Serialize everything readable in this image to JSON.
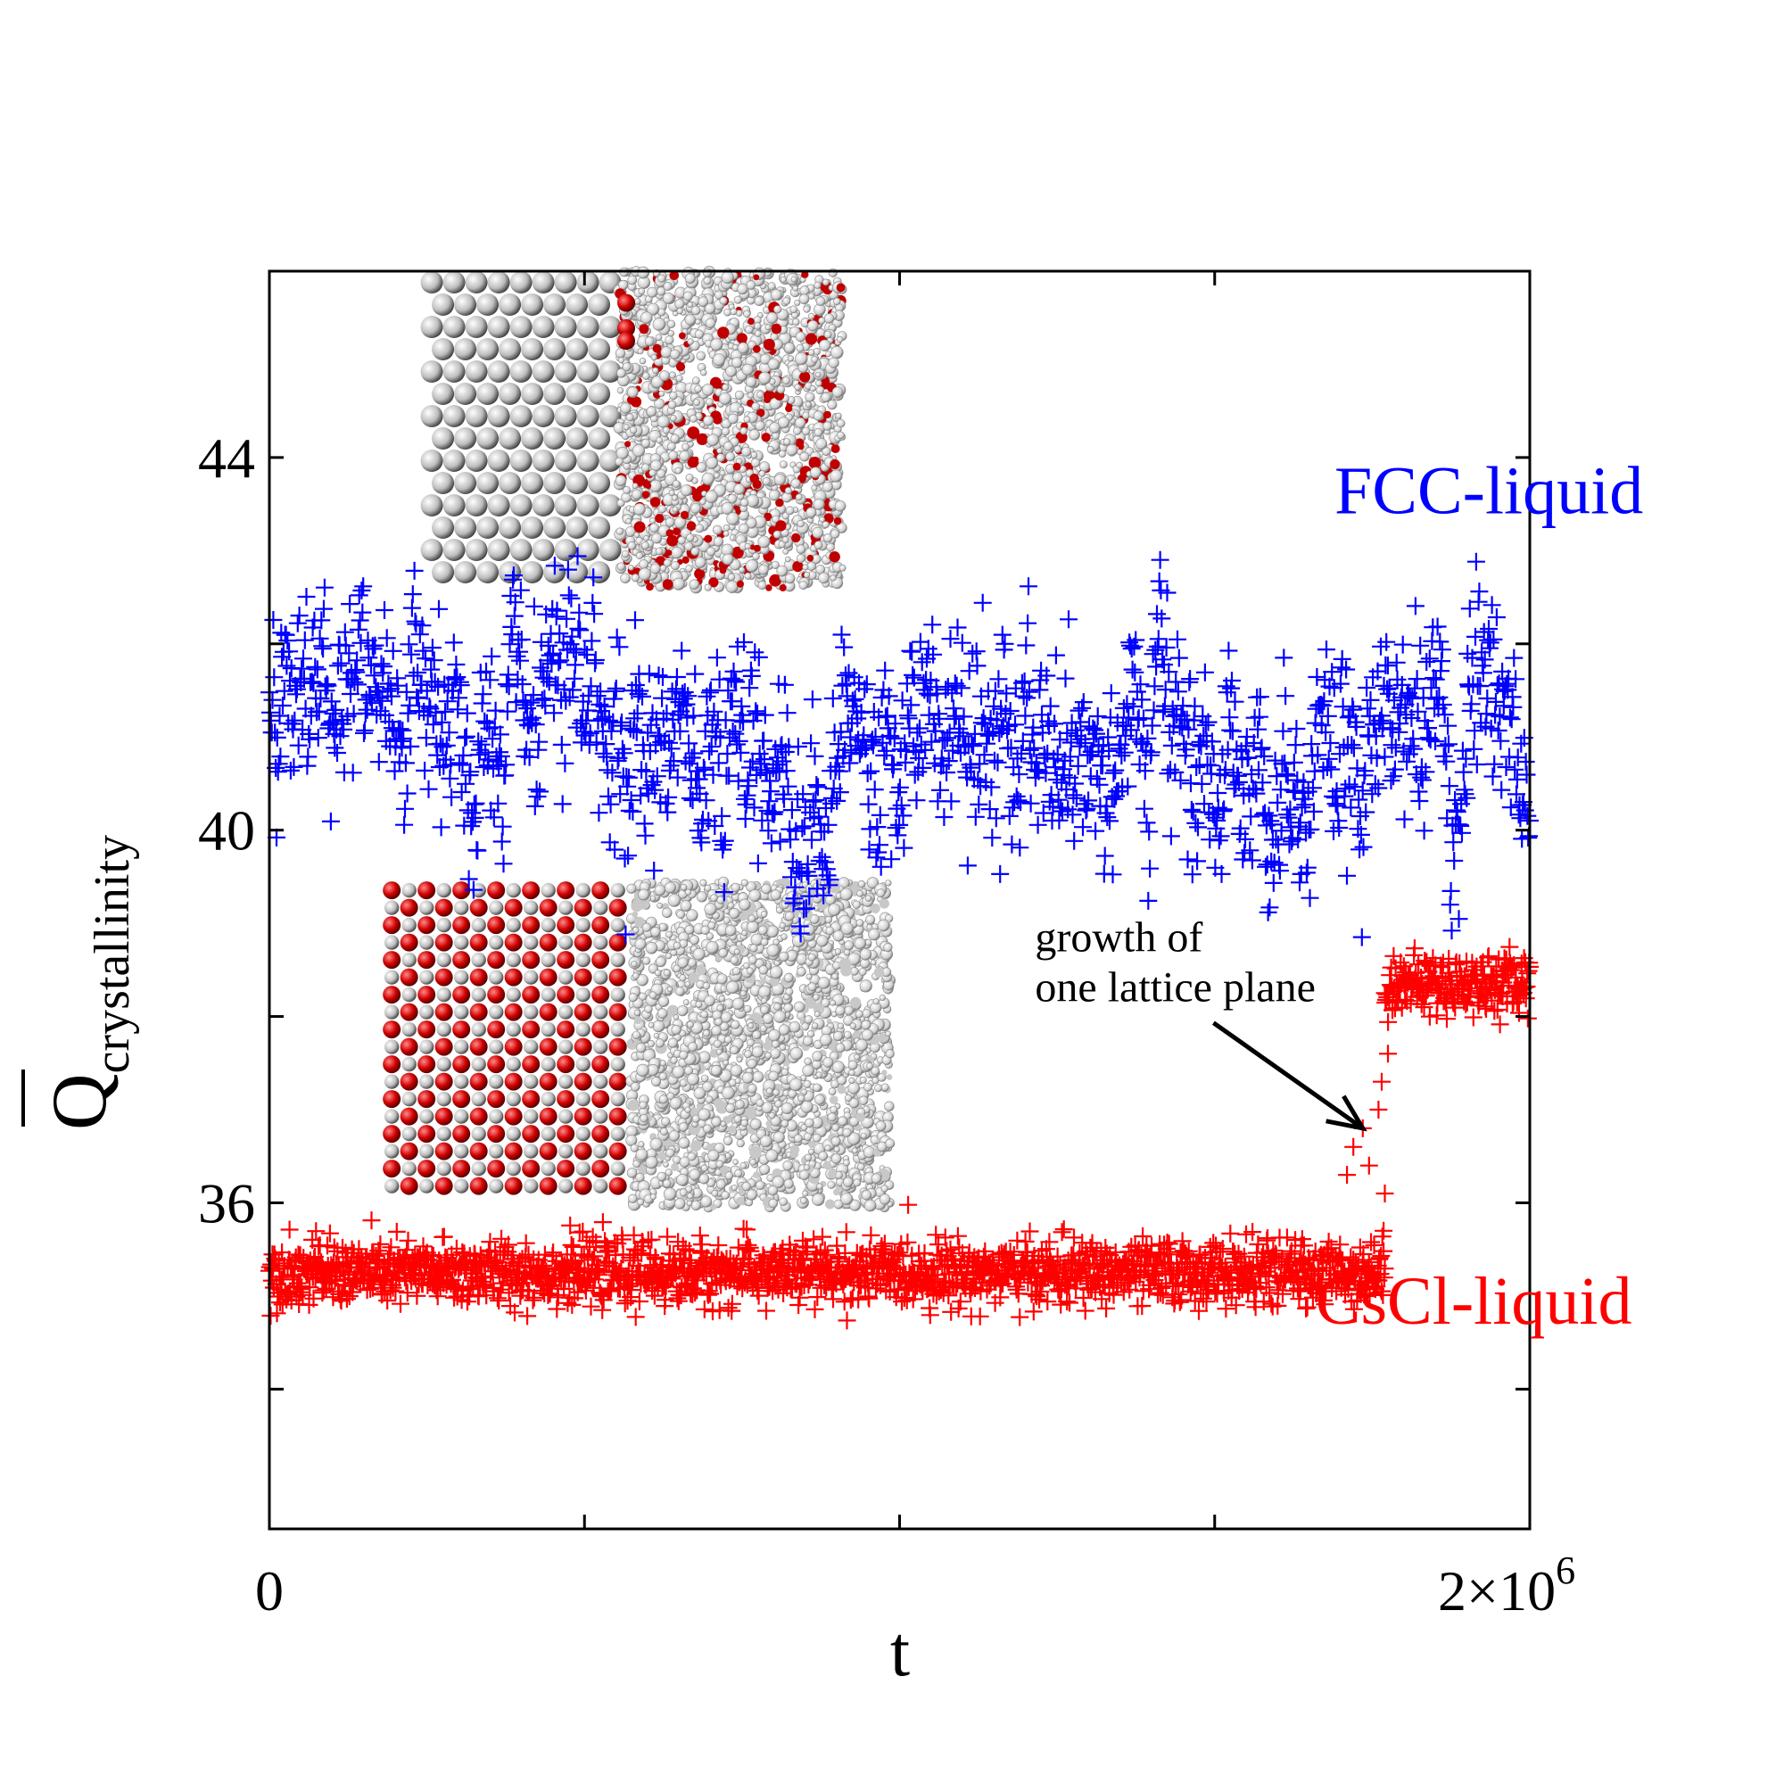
{
  "chart_data": {
    "type": "scatter",
    "title": "",
    "xlabel": "t",
    "ylabel_main": "Q",
    "ylabel_sub": "crystallinity",
    "xlim": [
      0,
      2000000
    ],
    "ylim": [
      32.5,
      46
    ],
    "x_ticks": [
      0,
      500000,
      1000000,
      1500000,
      2000000
    ],
    "x_tick_labels": [
      {
        "value": 0,
        "label": "0",
        "sup": ""
      },
      {
        "value": 2000000,
        "label": "2×10",
        "sup": "6"
      }
    ],
    "y_ticks": [
      34,
      36,
      38,
      40,
      42,
      44
    ],
    "y_tick_labels": [
      {
        "value": 36,
        "label": "36"
      },
      {
        "value": 40,
        "label": "40"
      },
      {
        "value": 44,
        "label": "44"
      }
    ],
    "marker": "+",
    "series": [
      {
        "name": "FCC-liquid",
        "color": "#0000ff",
        "mean": 41.0,
        "stdev": 0.75,
        "x_range": [
          0,
          2000000
        ],
        "samples": 1600,
        "approx_values": [
          {
            "x": 0,
            "y": 41.6
          },
          {
            "x": 100000,
            "y": 41.7
          },
          {
            "x": 200000,
            "y": 41.5
          },
          {
            "x": 300000,
            "y": 40.4
          },
          {
            "x": 400000,
            "y": 40.7
          },
          {
            "x": 500000,
            "y": 41.2
          },
          {
            "x": 600000,
            "y": 41.1
          },
          {
            "x": 700000,
            "y": 41.3
          },
          {
            "x": 800000,
            "y": 40.8
          },
          {
            "x": 850000,
            "y": 40.2
          },
          {
            "x": 900000,
            "y": 40.9
          },
          {
            "x": 1000000,
            "y": 41.3
          },
          {
            "x": 1100000,
            "y": 40.9
          },
          {
            "x": 1200000,
            "y": 40.7
          },
          {
            "x": 1300000,
            "y": 40.9
          },
          {
            "x": 1400000,
            "y": 40.8
          },
          {
            "x": 1500000,
            "y": 40.9
          },
          {
            "x": 1600000,
            "y": 40.7
          },
          {
            "x": 1700000,
            "y": 41.0
          },
          {
            "x": 1800000,
            "y": 41.4
          },
          {
            "x": 1900000,
            "y": 40.9
          },
          {
            "x": 2000000,
            "y": 40.7
          }
        ]
      },
      {
        "name": "CsCl-liquid",
        "color": "#ff0000",
        "segments": [
          {
            "x_start": 0,
            "x_end": 1770000,
            "mean": 35.25,
            "stdev": 0.17
          },
          {
            "x_start": 1770000,
            "x_end": 2000000,
            "mean": 38.35,
            "stdev": 0.16
          }
        ],
        "transition_points": [
          {
            "x": 1710000,
            "y": 36.3
          },
          {
            "x": 1720000,
            "y": 36.6
          },
          {
            "x": 1735000,
            "y": 36.8
          },
          {
            "x": 1745000,
            "y": 36.4
          },
          {
            "x": 1760000,
            "y": 37.0
          },
          {
            "x": 1765000,
            "y": 37.3
          },
          {
            "x": 1770000,
            "y": 36.1
          },
          {
            "x": 1775000,
            "y": 37.6
          },
          {
            "x": 1768000,
            "y": 35.7
          }
        ]
      }
    ],
    "annotations": [
      {
        "text": "FCC-liquid",
        "color": "#0000ff",
        "x": 1690000,
        "y": 43.4
      },
      {
        "text": "CsCl-liquid",
        "color": "#ff0000",
        "x": 1660000,
        "y": 34.7
      },
      {
        "line1": "growth of",
        "line2": "one lattice plane",
        "color": "#000000",
        "x": 1215000,
        "y": 38.2,
        "arrow_to": {
          "x": 1735000,
          "y": 36.8
        }
      }
    ],
    "insets": [
      {
        "name": "fcc-snapshot",
        "crystal_color": "#d9d9d9",
        "accent_color": "#c00000",
        "x_range": [
          240000,
          910000
        ],
        "y_range": [
          42.6,
          46.0
        ]
      },
      {
        "name": "cscl-snapshot",
        "crystal_color": "#cc0000",
        "accent_color": "#c8c8c8",
        "x_range": [
          180000,
          985000
        ],
        "y_range": [
          35.95,
          39.45
        ]
      }
    ]
  }
}
